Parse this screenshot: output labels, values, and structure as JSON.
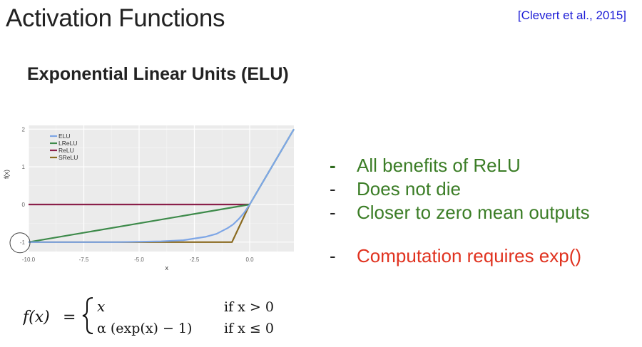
{
  "slide": {
    "title": "Activation Functions",
    "citation": "[Clevert et al., 2015]",
    "subtitle": "Exponential Linear Units (ELU)"
  },
  "bullets": [
    {
      "text": "All benefits of ReLU",
      "color": "#3b7d26"
    },
    {
      "text": "Does not die",
      "color": "#3b7d26"
    },
    {
      "text": "Closer to zero mean outputs",
      "color": "#3b7d26"
    },
    {
      "text": "Computation requires exp()",
      "color": "#e0321f"
    }
  ],
  "formula": {
    "lhs": "f(x)",
    "eq": "=",
    "case1_expr": "x",
    "case1_cond": "if x > 0",
    "case2_expr": "α (exp(x) − 1)",
    "case2_cond": "if x ≤ 0"
  },
  "chart_data": {
    "type": "line",
    "xlabel": "x",
    "ylabel": "f(x)",
    "xlim": [
      -10,
      2
    ],
    "ylim": [
      -1.25,
      2.1
    ],
    "xticks": [
      "-10.0",
      "-7.5",
      "-5.0",
      "-2.5",
      "0.0"
    ],
    "yticks": [
      "-1",
      "0",
      "1",
      "2"
    ],
    "grid": true,
    "legend_position": "top-left",
    "series": [
      {
        "name": "ELU",
        "color": "#7ea6e6",
        "x": [
          -10,
          -6,
          -4,
          -3,
          -2,
          -1.5,
          -1,
          -0.75,
          -0.5,
          -0.25,
          0,
          2
        ],
        "y": [
          -1,
          -1,
          -0.98,
          -0.95,
          -0.86,
          -0.78,
          -0.63,
          -0.53,
          -0.39,
          -0.22,
          0,
          2
        ]
      },
      {
        "name": "LReLU",
        "color": "#3d8a4a",
        "x": [
          -10,
          0,
          2
        ],
        "y": [
          -1,
          0,
          2
        ]
      },
      {
        "name": "ReLU",
        "color": "#8a1f4a",
        "x": [
          -10,
          0
        ],
        "y": [
          0,
          0
        ]
      },
      {
        "name": "SReLU",
        "color": "#8a6a1f",
        "x": [
          -10,
          -0.8,
          0
        ],
        "y": [
          -1,
          -1,
          0
        ]
      }
    ]
  }
}
